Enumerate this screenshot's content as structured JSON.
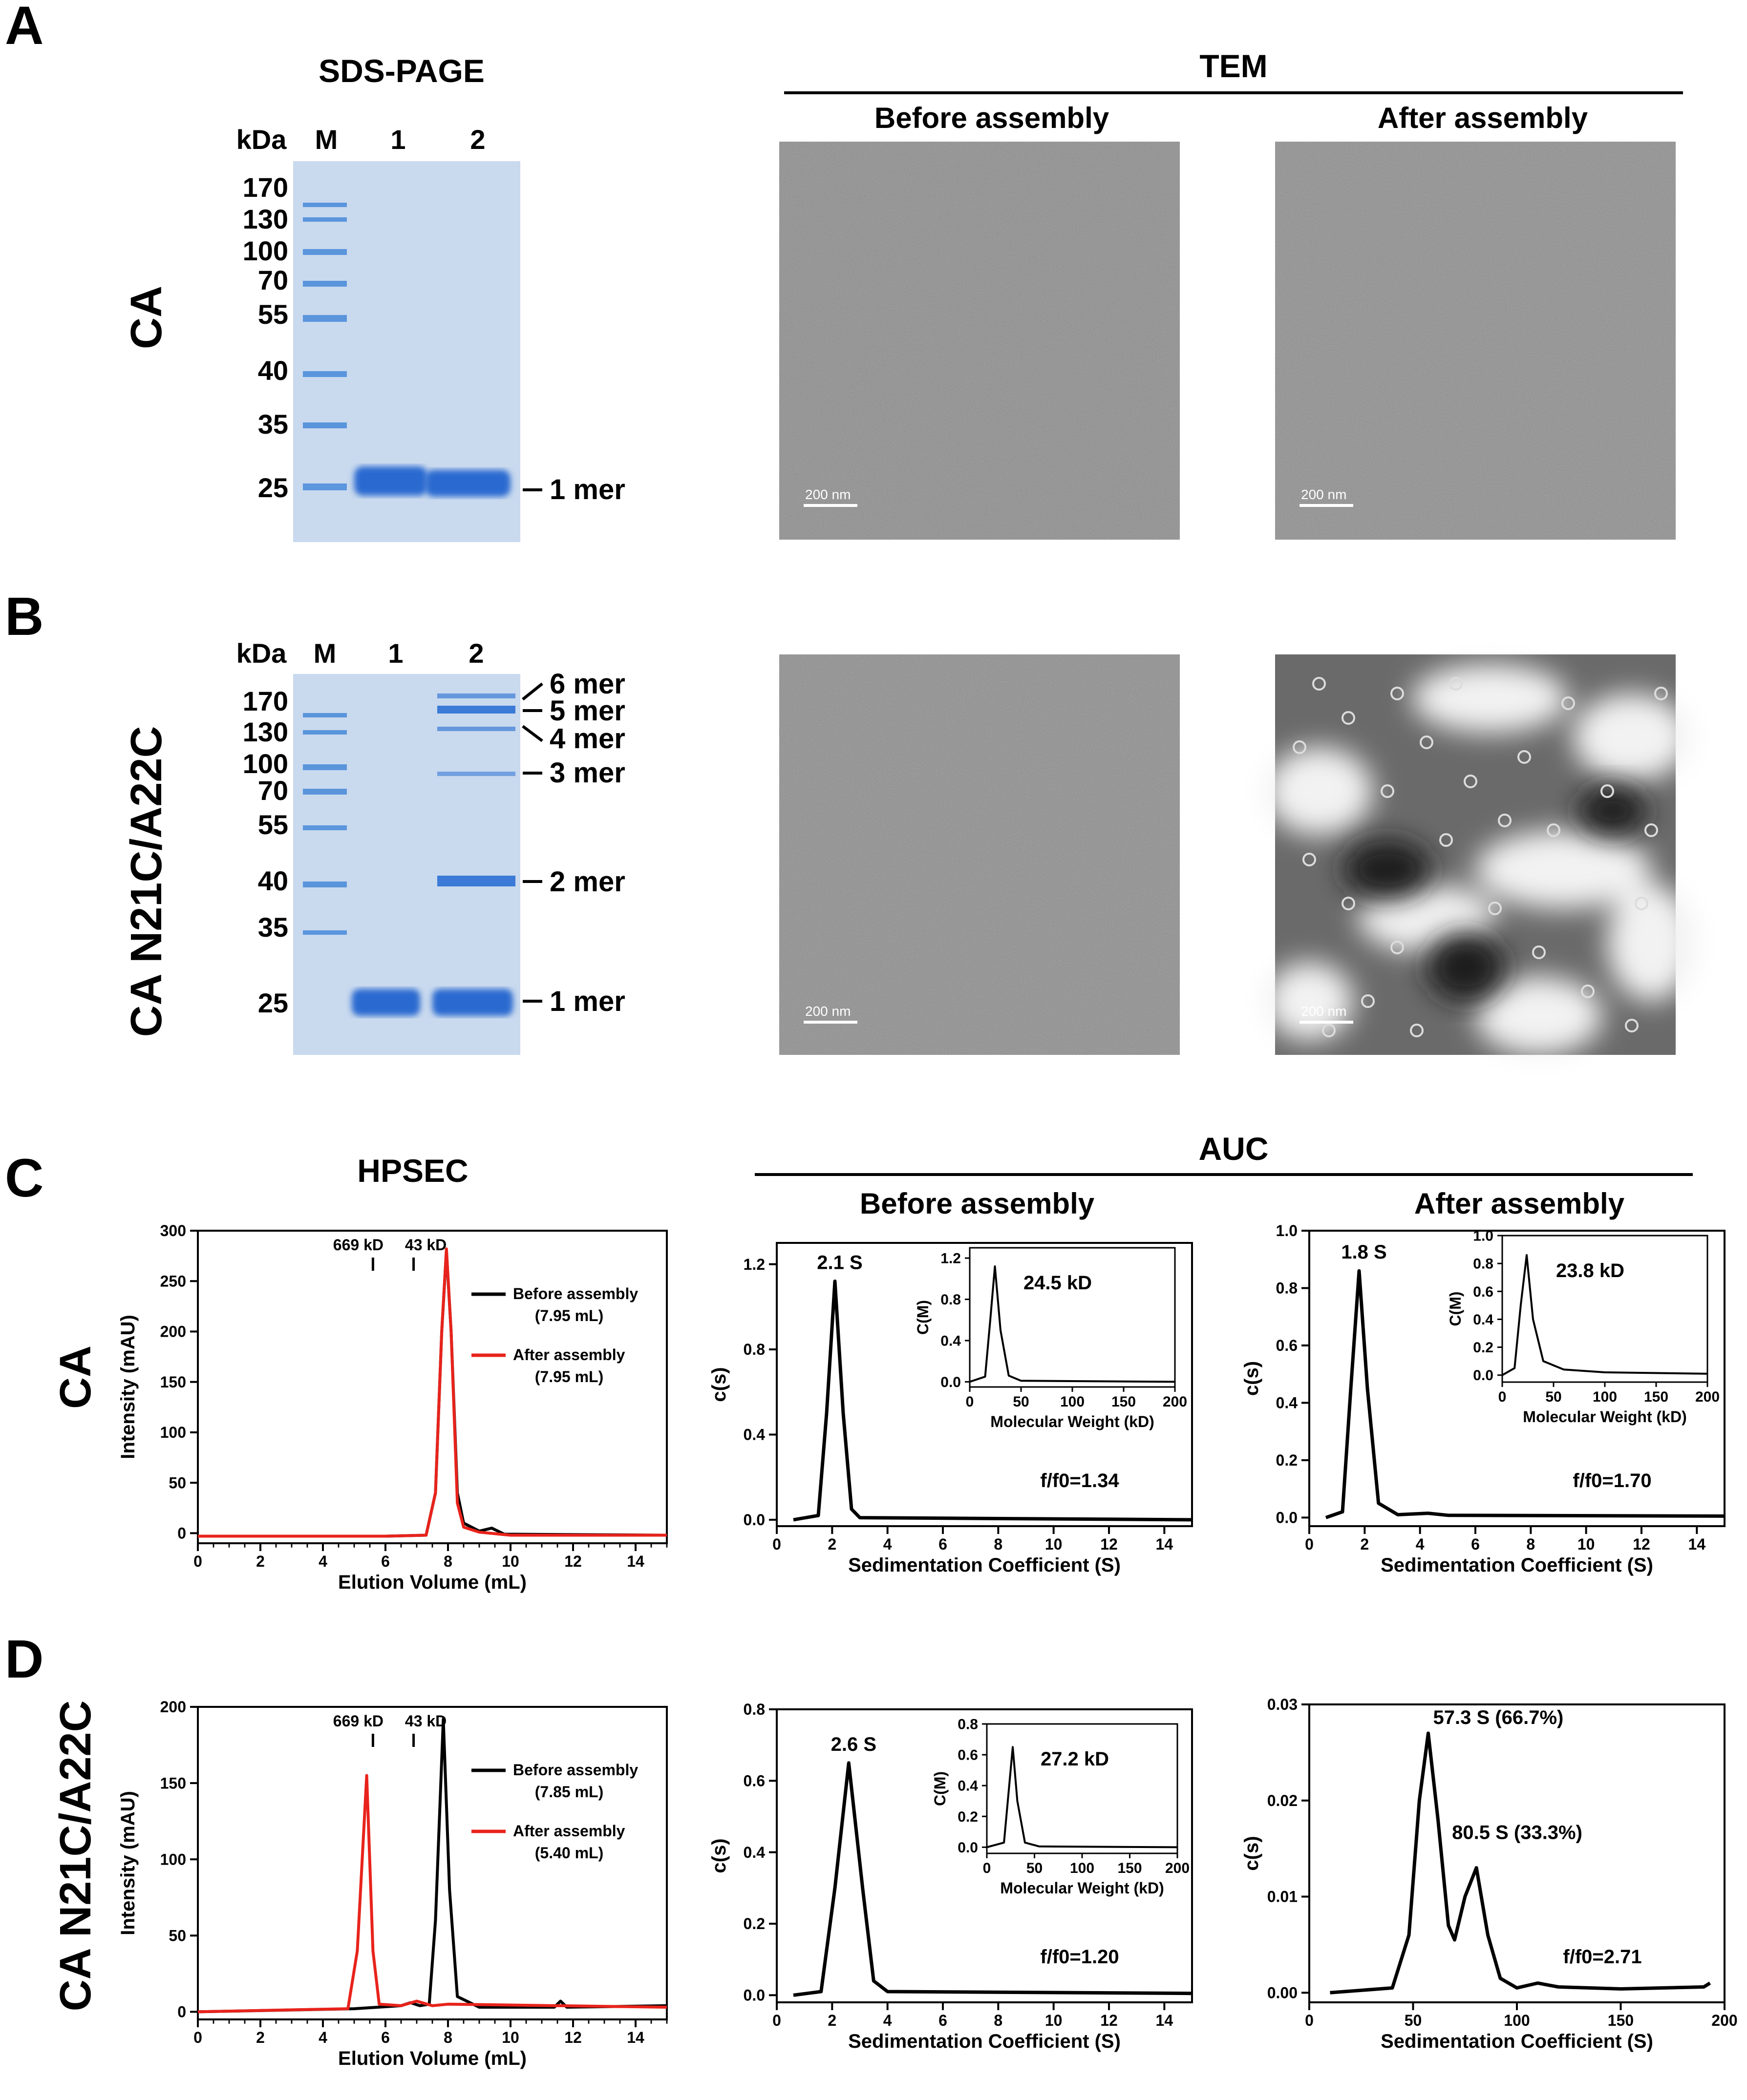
{
  "panels": {
    "A": {
      "letter": "A",
      "sds_title": "SDS-PAGE",
      "tem_title": "TEM",
      "row_label": "CA",
      "lane_labels": [
        "kDa",
        "M",
        "1",
        "2"
      ],
      "markers": [
        "170",
        "130",
        "100",
        "70",
        "55",
        "40",
        "35",
        "25"
      ],
      "band_labels": [
        "1 mer"
      ],
      "tem_before": "Before assembly",
      "tem_after": "After assembly",
      "scale": [
        "200 nm",
        "200 nm"
      ]
    },
    "B": {
      "letter": "B",
      "row_label": "CA N21C/A22C",
      "lane_labels": [
        "kDa",
        "M",
        "1",
        "2"
      ],
      "markers": [
        "170",
        "130",
        "100",
        "70",
        "55",
        "40",
        "35",
        "25"
      ],
      "band_labels": [
        "6 mer",
        "5 mer",
        "4 mer",
        "3 mer",
        "2 mer",
        "1 mer"
      ],
      "scale": [
        "200 nm",
        "200 nm"
      ]
    },
    "C": {
      "letter": "C",
      "hpsec_title": "HPSEC",
      "auc_title": "AUC",
      "row_label": "CA",
      "auc_before": "Before assembly",
      "auc_after": "After assembly"
    },
    "D": {
      "letter": "D",
      "row_label": "CA N21C/A22C"
    }
  },
  "colors": {
    "black_trace": "#000000",
    "red_trace": "#e8231b",
    "gel_bg": "#c9d9ee",
    "band": "#2a6ad0"
  },
  "chart_data": [
    {
      "id": "hpsec_C",
      "type": "line",
      "ylabel": "Intensity (mAU)",
      "xlabel": "Elution Volume (mL)",
      "xlim": [
        0,
        15
      ],
      "ylim": [
        -10,
        300
      ],
      "xticks": [
        0,
        2,
        4,
        6,
        8,
        10,
        12,
        14
      ],
      "yticks": [
        0,
        50,
        100,
        150,
        200,
        250,
        300
      ],
      "markers": [
        {
          "label": "669 kD",
          "x": 5.6
        },
        {
          "label": "43 kD",
          "x": 6.9
        }
      ],
      "series": [
        {
          "name": "Before assembly",
          "sub": "(7.95 mL)",
          "color": "#000000",
          "points": [
            [
              0,
              -3
            ],
            [
              6,
              -3
            ],
            [
              7.3,
              -2
            ],
            [
              7.6,
              40
            ],
            [
              7.8,
              200
            ],
            [
              7.95,
              280
            ],
            [
              8.1,
              200
            ],
            [
              8.3,
              40
            ],
            [
              8.5,
              10
            ],
            [
              9,
              2
            ],
            [
              9.4,
              5
            ],
            [
              9.8,
              -1
            ],
            [
              15,
              -2
            ]
          ]
        },
        {
          "name": "After assembly",
          "sub": "(7.95 mL)",
          "color": "#e8231b",
          "points": [
            [
              0,
              -3
            ],
            [
              6,
              -3
            ],
            [
              7.3,
              -2
            ],
            [
              7.6,
              40
            ],
            [
              7.8,
              200
            ],
            [
              7.95,
              282
            ],
            [
              8.1,
              200
            ],
            [
              8.3,
              30
            ],
            [
              8.5,
              6
            ],
            [
              9,
              1
            ],
            [
              10,
              -2
            ],
            [
              15,
              -2
            ]
          ]
        }
      ]
    },
    {
      "id": "hpsec_D",
      "type": "line",
      "ylabel": "Intensity (mAU)",
      "xlabel": "Elution Volume (mL)",
      "xlim": [
        0,
        15
      ],
      "ylim": [
        -5,
        200
      ],
      "xticks": [
        0,
        2,
        4,
        6,
        8,
        10,
        12,
        14
      ],
      "yticks": [
        0,
        50,
        100,
        150,
        200
      ],
      "markers": [
        {
          "label": "669 kD",
          "x": 5.6
        },
        {
          "label": "43 kD",
          "x": 6.9
        }
      ],
      "series": [
        {
          "name": "Before assembly",
          "sub": "(7.85 mL)",
          "color": "#000000",
          "points": [
            [
              0,
              0
            ],
            [
              5,
              2
            ],
            [
              6.5,
              4
            ],
            [
              6.8,
              6
            ],
            [
              7.1,
              4
            ],
            [
              7.4,
              5
            ],
            [
              7.6,
              60
            ],
            [
              7.85,
              192
            ],
            [
              8.05,
              80
            ],
            [
              8.3,
              10
            ],
            [
              9,
              3
            ],
            [
              11.4,
              3
            ],
            [
              11.6,
              7
            ],
            [
              11.8,
              3
            ],
            [
              15,
              4
            ]
          ]
        },
        {
          "name": "After assembly",
          "sub": "(5.40 mL)",
          "color": "#e8231b",
          "points": [
            [
              0,
              0
            ],
            [
              4.8,
              2
            ],
            [
              5.1,
              40
            ],
            [
              5.4,
              155
            ],
            [
              5.6,
              40
            ],
            [
              5.8,
              5
            ],
            [
              6.5,
              4
            ],
            [
              7.0,
              7
            ],
            [
              7.5,
              4
            ],
            [
              8,
              5
            ],
            [
              15,
              3
            ]
          ]
        }
      ]
    },
    {
      "id": "auc_C_before",
      "type": "line",
      "ylabel": "c(s)",
      "xlabel": "Sedimentation Coefficient (S)",
      "xlim": [
        0,
        15
      ],
      "ylim": [
        -0.03,
        1.3
      ],
      "xticks": [
        0,
        2,
        4,
        6,
        8,
        10,
        12,
        14
      ],
      "yticks": [
        0.0,
        0.4,
        0.8,
        1.2
      ],
      "annotations": [
        "2.1 S",
        "f/f0=1.34"
      ],
      "points": [
        [
          0.6,
          0
        ],
        [
          1.5,
          0.02
        ],
        [
          1.8,
          0.5
        ],
        [
          2.1,
          1.12
        ],
        [
          2.4,
          0.5
        ],
        [
          2.7,
          0.05
        ],
        [
          3,
          0.01
        ],
        [
          15,
          0
        ]
      ],
      "inset": {
        "ylabel": "C(M)",
        "xlabel": "Molecular Weight (kD)",
        "xlim": [
          0,
          200
        ],
        "ylim": [
          -0.05,
          1.3
        ],
        "xticks": [
          0,
          50,
          100,
          150,
          200
        ],
        "yticks": [
          0.0,
          0.4,
          0.8,
          1.2
        ],
        "annotation": "24.5 kD",
        "points": [
          [
            0,
            0
          ],
          [
            15,
            0.05
          ],
          [
            20,
            0.6
          ],
          [
            24.5,
            1.12
          ],
          [
            30,
            0.5
          ],
          [
            38,
            0.06
          ],
          [
            50,
            0.01
          ],
          [
            200,
            0
          ]
        ]
      }
    },
    {
      "id": "auc_C_after",
      "type": "line",
      "ylabel": "c(s)",
      "xlabel": "Sedimentation Coefficient (S)",
      "xlim": [
        0,
        15
      ],
      "ylim": [
        -0.03,
        1.0
      ],
      "xticks": [
        0,
        2,
        4,
        6,
        8,
        10,
        12,
        14
      ],
      "yticks": [
        0.0,
        0.2,
        0.4,
        0.6,
        0.8,
        1.0
      ],
      "annotations": [
        "1.8 S",
        "f/f0=1.70"
      ],
      "points": [
        [
          0.6,
          0
        ],
        [
          1.2,
          0.02
        ],
        [
          1.5,
          0.45
        ],
        [
          1.8,
          0.86
        ],
        [
          2.1,
          0.45
        ],
        [
          2.5,
          0.05
        ],
        [
          3.2,
          0.01
        ],
        [
          4.3,
          0.015
        ],
        [
          5,
          0.008
        ],
        [
          15,
          0.005
        ]
      ],
      "inset": {
        "ylabel": "C(M)",
        "xlabel": "Molecular Weight (kD)",
        "xlim": [
          0,
          200
        ],
        "ylim": [
          -0.05,
          1.0
        ],
        "xticks": [
          0,
          50,
          100,
          150,
          200
        ],
        "yticks": [
          0.0,
          0.2,
          0.4,
          0.6,
          0.8,
          1.0
        ],
        "annotation": "23.8 kD",
        "points": [
          [
            0,
            0
          ],
          [
            12,
            0.05
          ],
          [
            18,
            0.5
          ],
          [
            23.8,
            0.86
          ],
          [
            30,
            0.4
          ],
          [
            40,
            0.1
          ],
          [
            60,
            0.04
          ],
          [
            100,
            0.02
          ],
          [
            200,
            0.01
          ]
        ]
      }
    },
    {
      "id": "auc_D_before",
      "type": "line",
      "ylabel": "c(s)",
      "xlabel": "Sedimentation Coefficient (S)",
      "xlim": [
        0,
        15
      ],
      "ylim": [
        -0.02,
        0.8
      ],
      "xticks": [
        0,
        2,
        4,
        6,
        8,
        10,
        12,
        14
      ],
      "yticks": [
        0.0,
        0.2,
        0.4,
        0.6,
        0.8
      ],
      "annotations": [
        "2.6 S",
        "f/f0=1.20"
      ],
      "points": [
        [
          0.6,
          0
        ],
        [
          1.6,
          0.01
        ],
        [
          2.1,
          0.3
        ],
        [
          2.6,
          0.65
        ],
        [
          3.1,
          0.3
        ],
        [
          3.5,
          0.04
        ],
        [
          4,
          0.01
        ],
        [
          15,
          0.005
        ]
      ],
      "inset": {
        "ylabel": "C(M)",
        "xlabel": "Molecular Weight (kD)",
        "xlim": [
          0,
          200
        ],
        "ylim": [
          -0.04,
          0.8
        ],
        "xticks": [
          0,
          50,
          100,
          150,
          200
        ],
        "yticks": [
          0.0,
          0.2,
          0.4,
          0.6,
          0.8
        ],
        "annotation": "27.2 kD",
        "points": [
          [
            0,
            0
          ],
          [
            18,
            0.03
          ],
          [
            22,
            0.3
          ],
          [
            27.2,
            0.65
          ],
          [
            32,
            0.3
          ],
          [
            40,
            0.03
          ],
          [
            55,
            0.005
          ],
          [
            200,
            0
          ]
        ]
      }
    },
    {
      "id": "auc_D_after",
      "type": "line",
      "ylabel": "c(s)",
      "xlabel": "Sedimentation Coefficient (S)",
      "xlim": [
        0,
        200
      ],
      "ylim": [
        -0.001,
        0.03
      ],
      "xticks": [
        0,
        50,
        100,
        150,
        200
      ],
      "yticks": [
        0.0,
        0.01,
        0.02,
        0.03
      ],
      "annotations": [
        "57.3 S (66.7%)",
        "80.5 S (33.3%)",
        "f/f0=2.71"
      ],
      "points": [
        [
          10,
          0
        ],
        [
          40,
          0.0005
        ],
        [
          48,
          0.006
        ],
        [
          53,
          0.02
        ],
        [
          57.3,
          0.027
        ],
        [
          62,
          0.018
        ],
        [
          67,
          0.007
        ],
        [
          70,
          0.0055
        ],
        [
          75,
          0.01
        ],
        [
          80.5,
          0.013
        ],
        [
          86,
          0.006
        ],
        [
          92,
          0.0015
        ],
        [
          100,
          0.0005
        ],
        [
          110,
          0.001
        ],
        [
          120,
          0.0006
        ],
        [
          150,
          0.0004
        ],
        [
          190,
          0.0006
        ],
        [
          193,
          0.001
        ]
      ]
    }
  ]
}
